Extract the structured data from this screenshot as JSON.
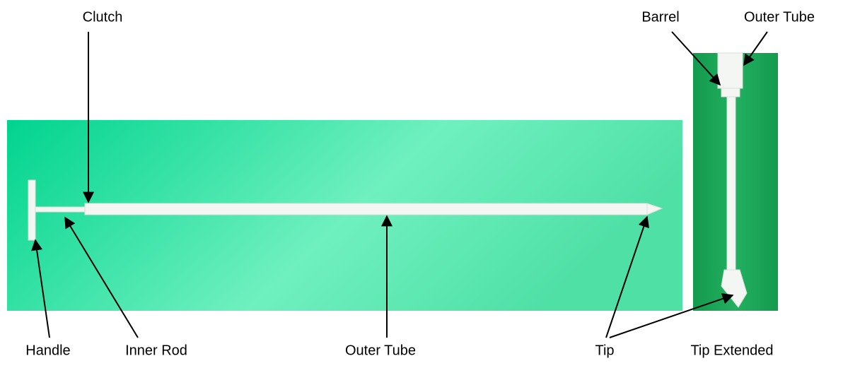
{
  "labels": [
    "Clutch",
    "Barrel",
    "Outer Tube",
    "Handle",
    "Inner Rod",
    "Outer Tube",
    "Tip",
    "Tip Extended"
  ]
}
